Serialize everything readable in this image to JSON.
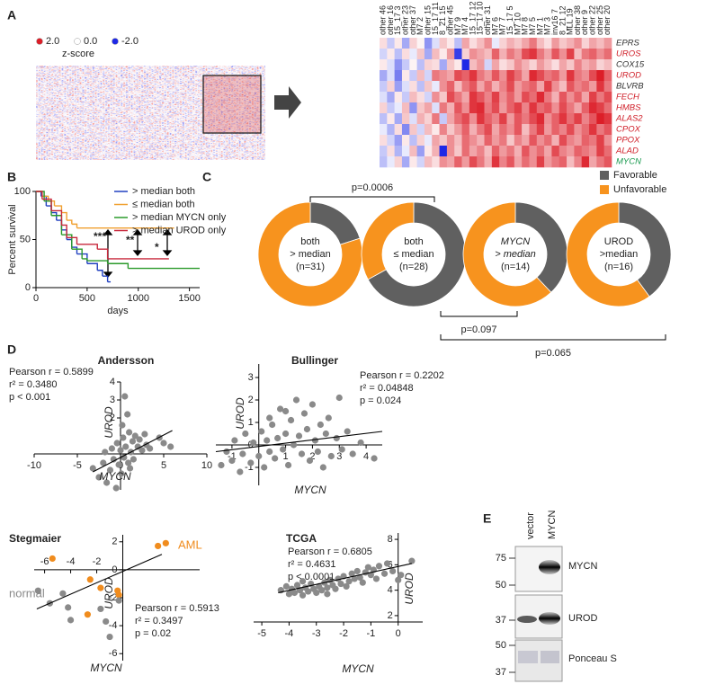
{
  "panels": [
    "A",
    "B",
    "C",
    "D",
    "E"
  ],
  "chart_data": [
    {
      "type": "heatmap",
      "legend_title": "z-score",
      "legend_labels": [
        "2.0",
        "0.0",
        "-2.0"
      ],
      "legend_colors": [
        "#dc1e28",
        "#ffffff",
        "#1e28e6"
      ],
      "columns": [
        "other 46",
        "other 16",
        "15_17 3",
        "other 23",
        "other 37",
        "M7 2",
        "other 15",
        "15_17 11",
        "8_21 15",
        "other 45",
        "M7 9",
        "M7 4",
        "15_17 12",
        "15_17 10",
        "other 31",
        "M7 6",
        "M7 7",
        "15_17 5",
        "M7 10",
        "M7 8",
        "M7 5",
        "M7 1",
        "M7 3",
        "inv16 7",
        "8_21 12",
        "MLL 19",
        "other 38",
        "other 9",
        "other 22",
        "other 25",
        "other 20"
      ],
      "rows": [
        "EPRS",
        "UROS",
        "COX15",
        "UROD",
        "BLVRB",
        "FECH",
        "HMBS",
        "ALAS2",
        "CPOX",
        "PPOX",
        "ALAD",
        "MYCN"
      ],
      "row_colors": [
        "#333333",
        "#d0202a",
        "#333333",
        "#d0202a",
        "#333333",
        "#d0202a",
        "#d0202a",
        "#d0202a",
        "#d0202a",
        "#d0202a",
        "#d0202a",
        "#1a9a50"
      ],
      "values": [
        [
          0.3,
          -0.5,
          0.2,
          -0.8,
          0.4,
          0.1,
          -1.0,
          -0.3,
          0.5,
          0.2,
          -0.6,
          0.8,
          0.3,
          0.6,
          1.0,
          -0.2,
          0.4,
          0.7,
          0.5,
          0.8,
          1.2,
          0.6,
          0.3,
          0.9,
          0.5,
          0.7,
          1.0,
          0.4,
          0.8,
          0.6,
          0.9
        ],
        [
          -0.4,
          0.2,
          -0.6,
          0.3,
          -0.2,
          0.5,
          -0.8,
          0.6,
          0.2,
          0.9,
          -1.8,
          0.4,
          1.0,
          0.8,
          0.6,
          1.4,
          0.7,
          1.2,
          0.9,
          1.6,
          1.8,
          1.2,
          0.8,
          1.5,
          1.0,
          1.7,
          0.6,
          1.2,
          1.4,
          1.0,
          1.3
        ],
        [
          0.2,
          -0.3,
          -1.0,
          -0.5,
          0.1,
          -0.6,
          0.4,
          0.3,
          -0.8,
          0.5,
          0.2,
          -2.0,
          0.6,
          0.9,
          -0.4,
          0.8,
          0.3,
          0.5,
          1.0,
          0.7,
          0.4,
          0.9,
          0.6,
          0.3,
          0.8,
          0.5,
          1.1,
          0.7,
          0.9,
          0.4,
          0.6
        ],
        [
          -0.8,
          -0.3,
          -1.2,
          0.2,
          -0.5,
          0.6,
          -0.4,
          1.2,
          1.0,
          0.8,
          1.6,
          1.4,
          1.8,
          1.2,
          0.9,
          1.5,
          1.0,
          1.7,
          1.3,
          0.8,
          1.9,
          1.6,
          1.2,
          1.4,
          0.9,
          1.8,
          1.2,
          1.0,
          1.6,
          2.0,
          1.4
        ],
        [
          -0.5,
          0.4,
          -0.9,
          -0.3,
          0.3,
          -0.6,
          0.5,
          -0.2,
          1.0,
          1.4,
          0.6,
          1.2,
          1.5,
          0.8,
          1.3,
          0.7,
          1.1,
          1.6,
          0.9,
          1.2,
          1.4,
          0.8,
          1.7,
          1.0,
          0.6,
          1.5,
          1.1,
          1.3,
          0.9,
          1.8,
          1.2
        ],
        [
          -0.3,
          -0.8,
          0.2,
          -0.5,
          0.6,
          0.3,
          -0.4,
          1.0,
          0.5,
          1.6,
          1.2,
          0.8,
          1.8,
          1.5,
          1.1,
          1.7,
          1.0,
          1.4,
          0.9,
          1.6,
          1.3,
          1.9,
          1.2,
          0.7,
          1.5,
          1.0,
          1.4,
          0.8,
          1.7,
          1.2,
          1.6
        ],
        [
          0.4,
          -0.5,
          -0.2,
          0.6,
          -1.0,
          0.5,
          0.8,
          -0.3,
          1.2,
          0.7,
          1.5,
          1.0,
          1.8,
          1.9,
          1.2,
          1.6,
          0.9,
          1.4,
          1.7,
          1.1,
          1.8,
          1.3,
          1.5,
          1.0,
          1.6,
          1.2,
          0.8,
          1.4,
          1.9,
          1.7,
          1.3
        ],
        [
          -0.6,
          0.2,
          -0.8,
          0.5,
          -0.3,
          0.7,
          0.4,
          1.2,
          -0.5,
          0.8,
          1.3,
          1.6,
          1.0,
          1.8,
          1.4,
          1.1,
          1.7,
          0.9,
          1.5,
          1.2,
          1.6,
          1.9,
          1.0,
          1.4,
          1.8,
          1.3,
          1.7,
          1.1,
          1.5,
          2.0,
          1.8
        ],
        [
          -0.2,
          -0.7,
          0.3,
          -1.1,
          0.5,
          -0.4,
          0.6,
          0.2,
          1.1,
          0.5,
          0.9,
          1.4,
          0.7,
          1.2,
          1.6,
          0.8,
          1.3,
          1.0,
          1.5,
          0.6,
          1.2,
          1.7,
          0.9,
          1.4,
          1.1,
          1.6,
          1.0,
          1.3,
          1.8,
          1.2,
          1.5
        ],
        [
          0.3,
          -0.4,
          -0.9,
          0.2,
          -0.6,
          0.4,
          -0.2,
          0.8,
          0.5,
          1.0,
          0.6,
          1.3,
          1.0,
          0.7,
          1.4,
          0.9,
          1.2,
          0.5,
          1.1,
          0.8,
          1.5,
          1.0,
          1.3,
          0.7,
          1.6,
          1.1,
          0.9,
          1.4,
          1.2,
          1.7,
          1.0
        ],
        [
          -0.5,
          0.3,
          -0.7,
          -0.2,
          0.6,
          -0.9,
          0.2,
          0.7,
          -2.0,
          1.0,
          0.5,
          1.3,
          0.8,
          1.1,
          0.6,
          1.4,
          0.9,
          1.2,
          0.7,
          1.5,
          1.0,
          1.3,
          0.8,
          1.6,
          1.1,
          0.9,
          1.4,
          1.2,
          1.0,
          1.7,
          1.3
        ],
        [
          -0.6,
          -0.2,
          0.4,
          -0.8,
          0.2,
          -0.4,
          0.6,
          0.3,
          1.0,
          0.8,
          1.4,
          0.9,
          1.6,
          1.2,
          0.7,
          1.8,
          1.1,
          1.5,
          0.8,
          1.3,
          1.0,
          1.7,
          0.9,
          1.2,
          1.4,
          0.6,
          1.1,
          1.9,
          0.8,
          1.2,
          1.5
        ]
      ]
    },
    {
      "type": "line",
      "ylabel": "Percent survival",
      "xlabel": "days",
      "xlim": [
        0,
        1600
      ],
      "xticks": [
        0,
        500,
        1000,
        1500
      ],
      "ylim": [
        0,
        100
      ],
      "yticks": [
        0,
        50,
        100
      ],
      "annotations": [
        "***",
        "**",
        "*"
      ],
      "series": [
        {
          "name": "> median both",
          "color": "#2040c0",
          "x": [
            0,
            50,
            100,
            150,
            200,
            250,
            300,
            350,
            400,
            500,
            600,
            650,
            700,
            730
          ],
          "values": [
            100,
            95,
            85,
            78,
            70,
            60,
            50,
            42,
            35,
            25,
            18,
            12,
            6,
            6
          ]
        },
        {
          "name": "≤ median both",
          "color": "#f0a030",
          "x": [
            0,
            60,
            120,
            180,
            250,
            300,
            350,
            400,
            1350
          ],
          "values": [
            100,
            95,
            90,
            85,
            78,
            70,
            66,
            62,
            62
          ]
        },
        {
          "name": "> median MYCN only",
          "color": "#2a9a2a",
          "x": [
            0,
            80,
            150,
            250,
            350,
            450,
            500,
            700,
            900,
            1600
          ],
          "values": [
            100,
            90,
            75,
            55,
            40,
            30,
            28,
            25,
            20,
            20
          ]
        },
        {
          "name": "> median UROD only",
          "color": "#c8283c",
          "x": [
            0,
            60,
            150,
            250,
            300,
            400,
            600,
            700,
            1300
          ],
          "values": [
            100,
            92,
            80,
            65,
            52,
            45,
            40,
            30,
            30
          ]
        }
      ]
    },
    {
      "type": "pie",
      "categories": [
        "Favorable",
        "Unfavorable"
      ],
      "colors": [
        "#606060",
        "#f7931e"
      ],
      "groups": [
        {
          "center": [
            "both",
            "> median",
            "(n=31)"
          ],
          "italic": false,
          "values": [
            20,
            80
          ]
        },
        {
          "center": [
            "both",
            "≤ median",
            "(n=28)"
          ],
          "italic": false,
          "values": [
            67,
            33
          ]
        },
        {
          "center": [
            "MYCN",
            "> median",
            "(n=14)"
          ],
          "italic": true,
          "values": [
            38,
            62
          ]
        },
        {
          "center": [
            "UROD",
            ">median",
            "(n=16)"
          ],
          "italic": false,
          "values": [
            40,
            60
          ]
        }
      ],
      "p_values": [
        "p=0.0006",
        "p=0.097",
        "p=0.065"
      ]
    },
    {
      "type": "scatter",
      "title": "Andersson",
      "xlabel": "MYCN",
      "ylabel": "UROD",
      "stats": [
        "Pearson r = 0.5899",
        "r² = 0.3480",
        "p < 0.001"
      ],
      "xlim": [
        -10,
        10
      ],
      "xticks": [
        -10,
        -5,
        0,
        5,
        10
      ],
      "ylim": [
        -2,
        4
      ],
      "yticks": [
        2,
        3,
        4
      ],
      "fit": {
        "x": [
          -3.2,
          6
        ],
        "y": [
          -1,
          1.3
        ]
      },
      "series": [
        {
          "color": "#8a8a8a",
          "x": [
            -3.2,
            -2.5,
            -2,
            -1.6,
            -1.2,
            -1,
            -0.8,
            -0.5,
            -0.4,
            -0.2,
            0,
            0.1,
            0.3,
            0.4,
            0.5,
            0.6,
            0.8,
            0.9,
            1,
            1.2,
            1.4,
            1.5,
            1.7,
            2,
            2.2,
            2.5,
            2.8,
            3,
            3.4,
            4.5,
            5,
            5.8,
            -1.8,
            0.2,
            1.1
          ],
          "values": [
            -0.8,
            -1.3,
            -0.5,
            -1.6,
            -0.9,
            0.3,
            -0.3,
            -1.9,
            0.6,
            -0.6,
            0.2,
            -1.1,
            0.9,
            -0.2,
            3.2,
            0.4,
            2.2,
            -0.5,
            1.2,
            0.1,
            0.7,
            -0.3,
            1,
            0.4,
            0.8,
            0.2,
            1.1,
            0.5,
            0.3,
            0.9,
            0.6,
            0.4,
            0.1,
            1.6,
            -0.8
          ]
        }
      ]
    },
    {
      "type": "scatter",
      "title": "Bullinger",
      "xlabel": "MYCN",
      "ylabel": "UROD",
      "stats": [
        "Pearson r = 0.2202",
        "r² = 0.04848",
        "p = 0.024"
      ],
      "xlim": [
        -1.6,
        4.6
      ],
      "xticks": [
        -1,
        1,
        2,
        3,
        4
      ],
      "ylim": [
        -1.8,
        3.6
      ],
      "yticks": [
        -1,
        0,
        1,
        2,
        3
      ],
      "fit": {
        "x": [
          -1.6,
          4.6
        ],
        "y": [
          -0.3,
          0.6
        ]
      },
      "series": [
        {
          "color": "#8a8a8a",
          "x": [
            -1.4,
            -1.2,
            -1,
            -0.9,
            -0.7,
            -0.6,
            -0.5,
            -0.3,
            -0.2,
            0,
            0.1,
            0.2,
            0.3,
            0.4,
            0.5,
            0.6,
            0.7,
            0.8,
            0.9,
            1,
            1.1,
            1.2,
            1.3,
            1.4,
            1.5,
            1.6,
            1.7,
            1.8,
            1.9,
            2,
            2.1,
            2.2,
            2.3,
            2.4,
            2.5,
            2.6,
            2.7,
            2.9,
            3,
            3.1,
            3.3,
            3.5,
            3.8,
            4.3,
            1,
            0.4
          ],
          "values": [
            -0.9,
            -0.3,
            -0.7,
            0.2,
            -1.2,
            -0.4,
            0.5,
            -0.8,
            0.1,
            -0.5,
            0.6,
            -1,
            0.2,
            -0.3,
            0.9,
            -0.6,
            0.3,
            1.6,
            -0.2,
            0.5,
            -0.9,
            1.1,
            0,
            2,
            0.4,
            -0.4,
            1.4,
            0.7,
            -0.7,
            1.8,
            0.2,
            -0.3,
            0.9,
            -1,
            0.5,
            1.2,
            -0.5,
            0.3,
            2.1,
            -0.2,
            0.6,
            -0.4,
            0.1,
            -0.6,
            1.5,
            1.2
          ]
        }
      ]
    },
    {
      "type": "scatter",
      "title": "Stegmaier",
      "xlabel": "MYCN",
      "ylabel": "UROD",
      "stats": [
        "Pearson r = 0.5913",
        "r² = 0.3497",
        "p = 0.02"
      ],
      "xlim": [
        -6.8,
        5.9
      ],
      "xticks": [
        -6,
        -4,
        -2
      ],
      "ylim": [
        -6.5,
        2.5
      ],
      "yticks": [
        -6,
        -4,
        -2,
        0,
        2
      ],
      "fit": {
        "x": [
          -6.6,
          3
        ],
        "y": [
          -2.8,
          1.1
        ]
      },
      "series": [
        {
          "name": "AML",
          "color": "#f08c1e",
          "x": [
            -5.4,
            -2.5,
            -1.7,
            -2.7,
            -0.4,
            -0.3,
            2.7,
            3.3
          ],
          "values": [
            0.8,
            -0.7,
            -1.3,
            -3.2,
            -1.5,
            -1.8,
            1.7,
            1.9
          ]
        },
        {
          "name": "normal",
          "color": "#8a8a8a",
          "x": [
            -6.5,
            -5.6,
            -4.6,
            -4.2,
            -4,
            -1.7,
            -1.3,
            -1,
            -0.3
          ],
          "values": [
            -1.5,
            -2.4,
            -1.7,
            -2.7,
            -3.6,
            -2.8,
            -3.7,
            -4.8,
            -2.2
          ]
        }
      ]
    },
    {
      "type": "scatter",
      "title": "TCGA",
      "xlabel": "MYCN",
      "ylabel": "UROD",
      "stats": [
        "Pearson r = 0.6805",
        "r² = 0.4631",
        "p < 0.0001"
      ],
      "xlim": [
        -5.3,
        0.9
      ],
      "xticks": [
        -5,
        -4,
        -3,
        -2,
        -1,
        0
      ],
      "ylim": [
        1.5,
        8.5
      ],
      "yticks": [
        2,
        4,
        6,
        8
      ],
      "fit": {
        "x": [
          -4.4,
          0.5
        ],
        "y": [
          3.8,
          6.1
        ]
      },
      "series": [
        {
          "color": "#8a8a8a",
          "x": [
            -4.3,
            -4.1,
            -4,
            -3.9,
            -3.8,
            -3.7,
            -3.6,
            -3.5,
            -3.4,
            -3.3,
            -3.2,
            -3.1,
            -3,
            -2.9,
            -2.8,
            -2.7,
            -2.6,
            -2.5,
            -2.4,
            -2.3,
            -2.2,
            -2.1,
            -2,
            -1.9,
            -1.8,
            -1.7,
            -1.6,
            -1.5,
            -1.4,
            -1.3,
            -1.2,
            -1.1,
            -1,
            -0.9,
            -0.8,
            -0.7,
            -0.5,
            -0.4,
            -0.2,
            0,
            0.1,
            0.5,
            -3.5,
            -2.6
          ],
          "values": [
            4,
            4.3,
            3.7,
            4.1,
            3.8,
            4.4,
            4,
            3.6,
            4.2,
            3.9,
            4.5,
            4.1,
            3.8,
            4.3,
            4,
            4.6,
            4.2,
            4.8,
            4.4,
            4.1,
            4.9,
            4.5,
            5.1,
            4.3,
            4.7,
            5.3,
            4.9,
            5.5,
            5,
            4.6,
            5.4,
            5.8,
            5.2,
            5.6,
            4.9,
            5.9,
            5.3,
            6.1,
            5.5,
            4.8,
            5.2,
            6.3,
            4.7,
            3.7
          ]
        }
      ]
    }
  ],
  "blot": {
    "lanes": [
      "vector",
      "MYCN"
    ],
    "rows": [
      {
        "label": "MYCN",
        "markers": [
          "75",
          "50"
        ]
      },
      {
        "label": "UROD",
        "markers": [
          "37"
        ]
      },
      {
        "label": "Ponceau S",
        "markers": [
          "50",
          "37"
        ]
      }
    ]
  }
}
